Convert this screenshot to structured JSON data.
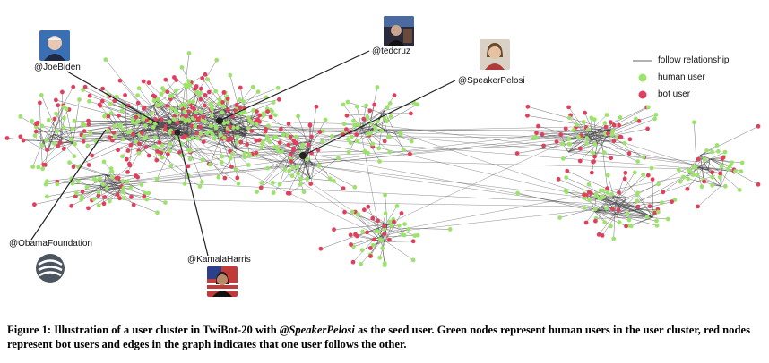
{
  "figure": {
    "labels": {
      "joebiden": "@JoeBiden",
      "tedcruz": "@tedcruz",
      "speakerpelosi": "@SpeakerPelosi",
      "obamafoundation": "@ObamaFoundation",
      "kamalaharris": "@KamalaHarris"
    },
    "legend": {
      "edge": "follow relationship",
      "human": "human user",
      "bot": "bot user"
    },
    "colors": {
      "human": "#9be36a",
      "bot": "#e0405e",
      "edge": "#444444"
    }
  },
  "caption": {
    "prefix": "Figure 1: Illustration of a user cluster in TwiBot-20 with ",
    "emph": "@SpeakerPelosi",
    "suffix": " as the seed user. Green nodes represent human users in the user cluster, red nodes represent bot users and edges in the graph indicates that one user follows the other."
  }
}
